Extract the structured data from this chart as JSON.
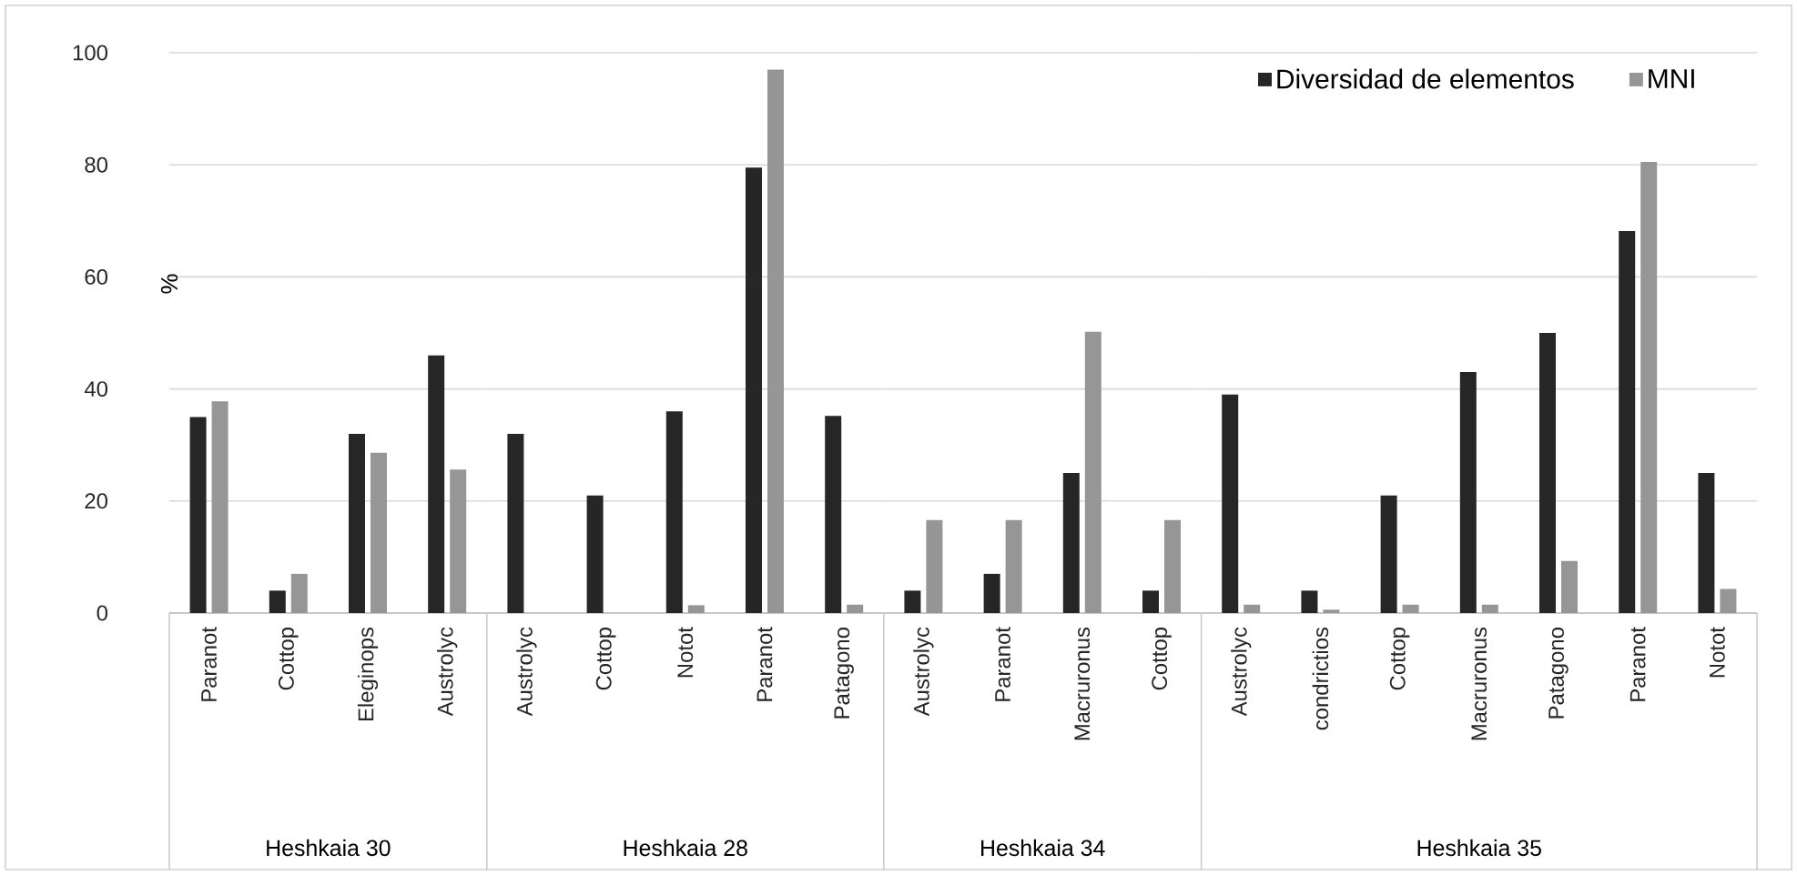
{
  "chart_data": [
    {
      "type": "bar",
      "xlabel": "Heshkaia 30",
      "ylabel": "%",
      "categories": [
        "Paranot",
        "Cottop",
        "Eleginops",
        "Austrolyc"
      ],
      "series": [
        {
          "color": "#262626",
          "values": [
            35,
            4,
            32,
            46
          ]
        },
        {
          "color": "#969696",
          "values": [
            37.8,
            7,
            28.6,
            25.6
          ]
        }
      ],
      "ylim": [
        0,
        100
      ],
      "yticks": [
        0,
        20,
        40,
        60,
        80,
        100
      ],
      "grid": "y"
    },
    {
      "type": "bar",
      "xlabel": "Heshkaia 28",
      "categories": [
        "Austrolyc",
        "Cottop",
        "Notot",
        "Paranot",
        "Patagono"
      ],
      "series": [
        {
          "color": "#262626",
          "values": [
            32,
            21,
            36,
            79.5,
            35.2
          ]
        },
        {
          "color": "#969696",
          "values": [
            0,
            0,
            1.4,
            97,
            1.5
          ]
        }
      ],
      "ylim": [
        0,
        100
      ],
      "yticks": [
        0,
        20,
        40,
        60,
        80,
        100
      ],
      "grid": "y",
      "tick_labels": "x"
    },
    {
      "type": "bar",
      "xlabel": "Heshkaia 34",
      "categories": [
        "Austrolyc",
        "Paranot",
        "Macruronus",
        "Cottop"
      ],
      "series": [
        {
          "color": "#262626",
          "values": [
            4,
            7,
            25,
            4
          ]
        },
        {
          "color": "#969696",
          "values": [
            16.6,
            16.6,
            50.2,
            16.6
          ]
        }
      ],
      "ylim": [
        0,
        100
      ],
      "yticks": [
        0,
        20,
        40,
        60,
        80,
        100
      ],
      "grid": "y",
      "tick_labels": "x"
    },
    {
      "type": "bar",
      "xlabel": "Heshkaia 35",
      "categories": [
        "Austrolyc",
        "condrictios",
        "Cottop",
        "Macruronus",
        "Patagono",
        "Paranot",
        "Notot"
      ],
      "series": [
        {
          "name": "Diversidad de elementos",
          "color": "#262626",
          "values": [
            39,
            4,
            21,
            43,
            50,
            68.2,
            25
          ]
        },
        {
          "name": "MNI",
          "color": "#969696",
          "values": [
            1.5,
            0.6,
            1.5,
            1.5,
            9.3,
            80.5,
            4.3
          ]
        }
      ],
      "ylim": [
        0,
        100
      ],
      "yticks": [
        0,
        20,
        40,
        60,
        80,
        100
      ],
      "grid": "y",
      "tick_labels": "x",
      "legend": "top"
    }
  ]
}
